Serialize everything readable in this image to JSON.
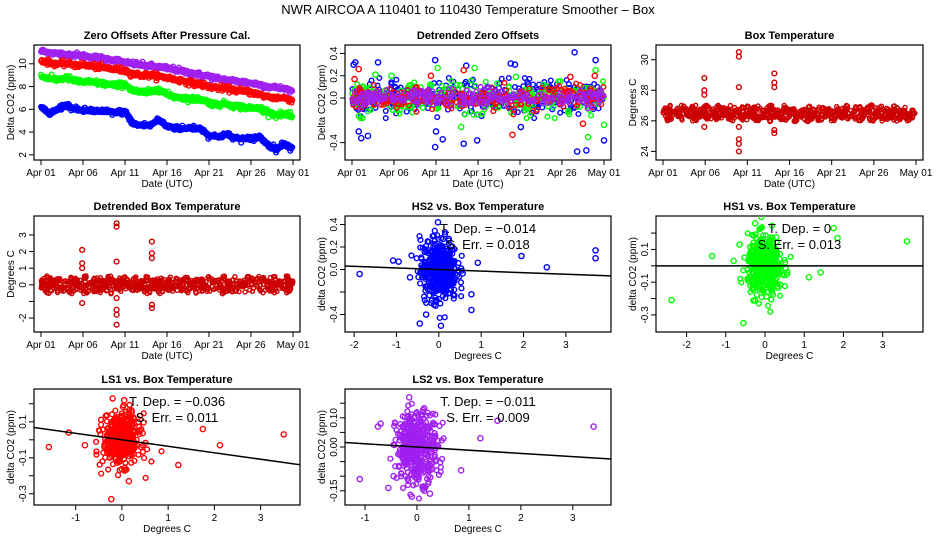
{
  "page": {
    "title": "NWR   AIRCOA A   110401 to 110430   Temperature Smoother – Box"
  },
  "colors": {
    "HS2": "#0000ff",
    "HS1": "#00ff00",
    "LS1": "#ff0000",
    "LS2": "#a020f0",
    "box": "#cc0000",
    "fit_line": "#000000"
  },
  "chart_data": [
    {
      "id": "p1",
      "type": "line",
      "title": "Zero Offsets After Pressure Cal.",
      "xlabel": "Date (UTC)",
      "ylabel": "Delta CO2 (ppm)",
      "x_ticks": [
        "Apr 01",
        "Apr 06",
        "Apr 11",
        "Apr 16",
        "Apr 21",
        "Apr 26",
        "May 01"
      ],
      "xlim": [
        0,
        30
      ],
      "y_ticks": [
        "2",
        "4",
        "6",
        "8",
        "10"
      ],
      "ylim": [
        1.9,
        11.3
      ],
      "x": [
        0,
        1,
        2,
        3,
        4,
        5,
        6,
        7,
        8,
        9,
        10,
        11,
        12,
        13,
        14,
        15,
        16,
        17,
        18,
        19,
        20,
        21,
        22,
        23,
        24,
        25,
        26,
        27,
        28,
        29,
        30
      ],
      "series": [
        {
          "name": "LS2",
          "values": [
            11.1,
            11.0,
            10.9,
            10.8,
            10.8,
            10.7,
            10.6,
            10.5,
            10.4,
            10.3,
            10.1,
            10.0,
            9.9,
            9.8,
            9.7,
            9.6,
            9.5,
            9.3,
            9.2,
            9.0,
            8.9,
            8.7,
            8.6,
            8.5,
            8.4,
            8.3,
            8.2,
            8.0,
            7.9,
            7.8,
            7.6
          ]
        },
        {
          "name": "LS1",
          "values": [
            10.3,
            10.1,
            10.0,
            10.0,
            9.9,
            9.9,
            9.8,
            9.7,
            9.6,
            9.5,
            9.4,
            9.1,
            9.0,
            9.0,
            8.9,
            8.8,
            8.6,
            8.5,
            8.3,
            8.2,
            8.0,
            7.9,
            7.8,
            7.7,
            7.6,
            7.5,
            7.3,
            7.1,
            7.0,
            7.0,
            6.8
          ]
        },
        {
          "name": "HS1",
          "values": [
            8.9,
            8.7,
            8.6,
            8.8,
            8.5,
            8.4,
            8.4,
            8.3,
            8.2,
            8.1,
            8.2,
            7.6,
            7.5,
            7.5,
            7.8,
            7.3,
            7.1,
            7.0,
            6.9,
            6.9,
            6.6,
            6.4,
            6.5,
            6.3,
            6.2,
            6.1,
            6.1,
            5.8,
            5.5,
            5.6,
            5.3
          ]
        },
        {
          "name": "HS2",
          "values": [
            6.2,
            5.6,
            6.0,
            6.4,
            6.0,
            5.9,
            5.9,
            5.8,
            5.8,
            5.7,
            5.8,
            4.7,
            4.6,
            4.6,
            5.1,
            4.5,
            4.4,
            4.3,
            4.4,
            4.3,
            3.7,
            3.6,
            3.8,
            3.5,
            3.4,
            3.4,
            3.6,
            2.9,
            2.5,
            3.0,
            2.5
          ]
        }
      ]
    },
    {
      "id": "p2",
      "type": "scatter",
      "title": "Detrended Zero Offsets",
      "xlabel": "Date (UTC)",
      "ylabel": "Delta CO2 (ppm)",
      "x_ticks": [
        "Apr 01",
        "Apr 06",
        "Apr 11",
        "Apr 16",
        "Apr 21",
        "Apr 26",
        "May 01"
      ],
      "xlim": [
        0,
        30
      ],
      "y_ticks": [
        "-0.4",
        "0.0",
        "0.2",
        "0.4"
      ],
      "y_tick_values": [
        -0.4,
        0.0,
        0.2,
        0.4
      ],
      "ylim": [
        -0.52,
        0.44
      ],
      "series": [
        {
          "name": "HS2",
          "spread": 0.18,
          "outliers": [
            [
              0.2,
              0.3
            ],
            [
              0.4,
              0.32
            ],
            [
              0.8,
              -0.3
            ],
            [
              1.1,
              -0.36
            ],
            [
              1.9,
              -0.34
            ],
            [
              3.1,
              0.32
            ],
            [
              9.9,
              0.34
            ],
            [
              9.9,
              -0.44
            ],
            [
              10.0,
              -0.3
            ],
            [
              10.8,
              -0.37
            ],
            [
              13.3,
              -0.41
            ],
            [
              13.6,
              0.29
            ],
            [
              14.9,
              -0.38
            ],
            [
              18.9,
              0.31
            ],
            [
              19.4,
              0.3
            ],
            [
              20.1,
              -0.26
            ],
            [
              26.5,
              0.41
            ],
            [
              26.8,
              -0.48
            ],
            [
              27.9,
              -0.47
            ],
            [
              29.0,
              0.34
            ],
            [
              30.0,
              -0.38
            ]
          ]
        },
        {
          "name": "HS1",
          "spread": 0.14,
          "outliers": [
            [
              2.8,
              0.21
            ],
            [
              4.7,
              0.2
            ],
            [
              10.2,
              0.27
            ],
            [
              13.0,
              -0.26
            ],
            [
              14.6,
              0.27
            ],
            [
              19.5,
              0.19
            ],
            [
              24.8,
              0.15
            ],
            [
              28.1,
              -0.35
            ],
            [
              29.0,
              0.25
            ],
            [
              30.0,
              -0.24
            ]
          ]
        },
        {
          "name": "LS1",
          "spread": 0.1,
          "outliers": [
            [
              0.3,
              0.17
            ],
            [
              0.8,
              0.26
            ],
            [
              9.4,
              0.2
            ],
            [
              13.3,
              0.25
            ],
            [
              19.1,
              -0.33
            ],
            [
              26.0,
              0.19
            ],
            [
              27.5,
              -0.23
            ],
            [
              28.9,
              0.2
            ]
          ]
        },
        {
          "name": "LS2",
          "spread": 0.08,
          "outliers": []
        }
      ]
    },
    {
      "id": "p3",
      "type": "scatter",
      "title": "Box Temperature",
      "xlabel": "Date (UTC)",
      "ylabel": "Degrees C",
      "x_ticks": [
        "Apr 01",
        "Apr 06",
        "Apr 11",
        "Apr 16",
        "Apr 21",
        "Apr 26",
        "May 01"
      ],
      "xlim": [
        0,
        30
      ],
      "y_ticks": [
        "24",
        "26",
        "28",
        "30"
      ],
      "y_tick_values": [
        24,
        26,
        28,
        30
      ],
      "ylim": [
        23.7,
        30.7
      ],
      "baseline": 26.5,
      "spread": 0.55,
      "outliers": [
        [
          4.9,
          28.8
        ],
        [
          4.9,
          28.0
        ],
        [
          4.9,
          27.7
        ],
        [
          4.9,
          25.6
        ],
        [
          9.0,
          30.5
        ],
        [
          9.0,
          30.2
        ],
        [
          9.0,
          28.2
        ],
        [
          9.0,
          25.6
        ],
        [
          9.0,
          24.8
        ],
        [
          9.0,
          24.5
        ],
        [
          9.0,
          24.0
        ],
        [
          13.2,
          29.1
        ],
        [
          13.2,
          28.5
        ],
        [
          13.2,
          28.2
        ],
        [
          13.2,
          25.4
        ],
        [
          13.2,
          25.2
        ]
      ]
    },
    {
      "id": "p4",
      "type": "scatter",
      "title": "Detrended Box Temperature",
      "xlabel": "Date (UTC)",
      "ylabel": "Degrees C",
      "x_ticks": [
        "Apr 01",
        "Apr 06",
        "Apr 11",
        "Apr 16",
        "Apr 21",
        "Apr 26",
        "May 01"
      ],
      "xlim": [
        0,
        30
      ],
      "y_ticks": [
        "-2",
        "0",
        "1",
        "2",
        "3"
      ],
      "y_tick_values": [
        -2,
        0,
        1,
        2,
        3
      ],
      "y_minor_ticks": [
        -1
      ],
      "ylim": [
        -2.6,
        3.9
      ],
      "baseline": 0,
      "spread": 0.55,
      "outliers": [
        [
          4.9,
          2.1
        ],
        [
          4.9,
          1.3
        ],
        [
          4.9,
          1.0
        ],
        [
          4.9,
          -1.1
        ],
        [
          9.0,
          3.7
        ],
        [
          9.0,
          3.5
        ],
        [
          9.0,
          1.4
        ],
        [
          9.0,
          -0.8
        ],
        [
          9.0,
          -1.5
        ],
        [
          9.0,
          -1.8
        ],
        [
          9.0,
          -2.4
        ],
        [
          13.2,
          2.6
        ],
        [
          13.2,
          1.9
        ],
        [
          13.2,
          1.6
        ],
        [
          13.2,
          -1.2
        ],
        [
          13.2,
          -1.4
        ]
      ]
    },
    {
      "id": "p5",
      "type": "scatter",
      "title": "HS2 vs. Box Temperature",
      "xlabel": "Degrees C",
      "ylabel": "delta CO2 (ppm)",
      "series_name": "HS2",
      "x_ticks": [
        "-2",
        "-1",
        "0",
        "1",
        "2",
        "3"
      ],
      "x_tick_values": [
        -2,
        -1,
        0,
        1,
        2,
        3
      ],
      "xlim": [
        -2.05,
        3.9
      ],
      "y_ticks": [
        "-0.4",
        "0.0",
        "0.2",
        "0.4"
      ],
      "y_tick_values": [
        -0.4,
        0.0,
        0.2,
        0.4
      ],
      "y_minor_ticks": [
        -0.2
      ],
      "ylim": [
        -0.52,
        0.44
      ],
      "annotation": [
        "T. Dep. =  −0.014",
        "S. Err. =  0.018"
      ],
      "fit": {
        "slope": -0.014,
        "intercept": 0.0
      },
      "cloud": {
        "x_sd": 0.22,
        "y_sd": 0.14
      },
      "outliers": [
        [
          -1.87,
          -0.04
        ],
        [
          -1.08,
          0.08
        ],
        [
          -0.95,
          0.07
        ],
        [
          -0.68,
          -0.07
        ],
        [
          -0.45,
          -0.48
        ],
        [
          -0.3,
          -0.4
        ],
        [
          0.92,
          0.06
        ],
        [
          1.95,
          0.12
        ],
        [
          2.55,
          0.02
        ],
        [
          3.7,
          0.17
        ],
        [
          3.7,
          0.1
        ],
        [
          0.77,
          -0.36
        ],
        [
          0.77,
          -0.22
        ],
        [
          -0.02,
          0.42
        ],
        [
          0.05,
          -0.5
        ]
      ]
    },
    {
      "id": "p6",
      "type": "scatter",
      "title": "HS1 vs. Box Temperature",
      "xlabel": "Degrees C",
      "ylabel": "delta CO2 (ppm)",
      "series_name": "HS1",
      "x_ticks": [
        "-2",
        "-1",
        "0",
        "1",
        "2",
        "3"
      ],
      "x_tick_values": [
        -2,
        -1,
        0,
        1,
        2,
        3
      ],
      "xlim": [
        -2.6,
        3.85
      ],
      "y_ticks": [
        "-0.3",
        "-0.1",
        "0.1"
      ],
      "y_tick_values": [
        -0.3,
        -0.1,
        0.1
      ],
      "y_minor_ticks": [
        -0.2,
        0.0,
        0.2
      ],
      "ylim": [
        -0.38,
        0.28
      ],
      "annotation": [
        "T. Dep. =  0",
        "S. Err. =  0.013"
      ],
      "fit": {
        "slope": 0.0,
        "intercept": 0.0
      },
      "cloud": {
        "x_sd": 0.22,
        "y_sd": 0.09
      },
      "outliers": [
        [
          -2.38,
          -0.21
        ],
        [
          -1.35,
          0.06
        ],
        [
          -0.8,
          0.03
        ],
        [
          -0.65,
          0.13
        ],
        [
          -0.55,
          -0.35
        ],
        [
          1.12,
          -0.07
        ],
        [
          1.42,
          -0.04
        ],
        [
          1.75,
          0.23
        ],
        [
          1.85,
          0.17
        ],
        [
          3.62,
          0.15
        ],
        [
          -0.25,
          0.26
        ]
      ]
    },
    {
      "id": "p7",
      "type": "scatter",
      "title": "LS1 vs. Box Temperature",
      "xlabel": "Degrees C",
      "ylabel": "delta CO2 (ppm)",
      "series_name": "LS1",
      "x_ticks": [
        "-1",
        "0",
        "1",
        "2",
        "3"
      ],
      "x_tick_values": [
        -1,
        0,
        1,
        2,
        3
      ],
      "xlim": [
        -1.75,
        3.7
      ],
      "y_ticks": [
        "-0.3",
        "-0.1",
        "0.1"
      ],
      "y_tick_values": [
        -0.3,
        -0.1,
        0.1
      ],
      "y_minor_ticks": [
        -0.2,
        0.0,
        0.2
      ],
      "ylim": [
        -0.34,
        0.26
      ],
      "annotation": [
        "T. Dep. =  −0.036",
        "S. Err. =  0.011"
      ],
      "fit": {
        "slope": -0.036,
        "intercept": 0.0
      },
      "cloud": {
        "x_sd": 0.2,
        "y_sd": 0.07
      },
      "outliers": [
        [
          -1.58,
          -0.04
        ],
        [
          -1.15,
          0.04
        ],
        [
          -0.8,
          -0.03
        ],
        [
          1.22,
          -0.14
        ],
        [
          1.75,
          0.06
        ],
        [
          2.12,
          -0.03
        ],
        [
          3.5,
          0.03
        ],
        [
          -0.23,
          -0.33
        ],
        [
          -0.2,
          0.23
        ],
        [
          0.05,
          0.22
        ],
        [
          0.15,
          -0.23
        ]
      ]
    },
    {
      "id": "p8",
      "type": "scatter",
      "title": "LS2 vs. Box Temperature",
      "xlabel": "Degrees C",
      "ylabel": "delta CO2 (ppm)",
      "series_name": "LS2",
      "x_ticks": [
        "-1",
        "0",
        "1",
        "2",
        "3"
      ],
      "x_tick_values": [
        -1,
        0,
        1,
        2,
        3
      ],
      "xlim": [
        -1.25,
        3.6
      ],
      "y_ticks": [
        "-0.15",
        "0.00",
        "0.10"
      ],
      "y_tick_values": [
        -0.15,
        0.0,
        0.1
      ],
      "y_minor_ticks": [
        -0.1,
        -0.05,
        0.05,
        0.15
      ],
      "ylim": [
        -0.185,
        0.185
      ],
      "annotation": [
        "T. Dep. =  −0.011",
        "S. Err. =  0.009"
      ],
      "fit": {
        "slope": -0.011,
        "intercept": 0.0
      },
      "cloud": {
        "x_sd": 0.2,
        "y_sd": 0.06
      },
      "outliers": [
        [
          -1.1,
          -0.11
        ],
        [
          -0.75,
          0.07
        ],
        [
          -0.7,
          0.08
        ],
        [
          -0.55,
          -0.14
        ],
        [
          -0.45,
          -0.1
        ],
        [
          0.25,
          -0.16
        ],
        [
          0.85,
          -0.08
        ],
        [
          1.22,
          0.03
        ],
        [
          1.55,
          0.09
        ],
        [
          3.4,
          0.07
        ],
        [
          -0.15,
          0.17
        ],
        [
          -0.1,
          -0.17
        ]
      ]
    }
  ]
}
